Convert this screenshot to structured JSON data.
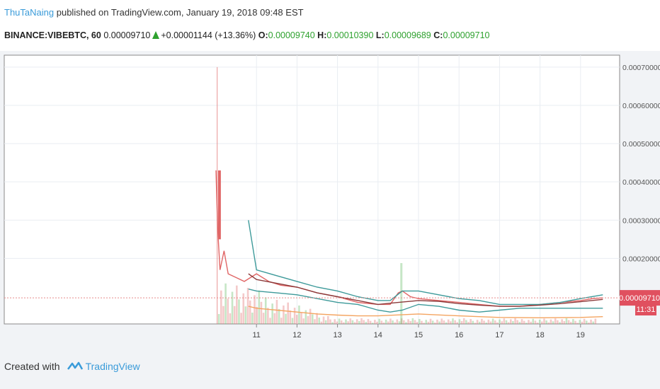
{
  "header": {
    "author": "ThuTaNaing",
    "published_text": "published on TradingView.com, January 19, 2018 09:48 EST",
    "symbol": "BINANCE:VIBEBTC, 60",
    "last_price": "0.00009710",
    "change": "+0.00001144 (+13.36%)",
    "open_label": "O:",
    "open": "0.00009740",
    "high_label": "H:",
    "high": "0.00010390",
    "low_label": "L:",
    "low": "0.00009689",
    "close_label": "C:",
    "close": "0.00009710"
  },
  "footer": {
    "created_with": "Created with",
    "brand": "TradingView"
  },
  "colors": {
    "up": "#5cb85c",
    "down": "#e06666",
    "bollinger": "#3d9a9a",
    "ma": "#8b3a3a",
    "volume_ma": "#f4a460",
    "price_line": "#e88a8a",
    "price_tag": "#e0505f"
  },
  "price_axis": {
    "ticks": [
      "0.00070000",
      "0.00060000",
      "0.00050000",
      "0.00040000",
      "0.00030000",
      "0.00020000"
    ]
  },
  "price_tag": {
    "value": "0.00009710",
    "countdown": "11:31"
  },
  "chart_data": {
    "type": "line",
    "ylim": [
      4e-05,
      0.00072
    ],
    "xlim": [
      0,
      9.6
    ],
    "x_ticks": [
      {
        "label": "11",
        "x": 1
      },
      {
        "label": "12",
        "x": 2
      },
      {
        "label": "13",
        "x": 3
      },
      {
        "label": "14",
        "x": 4
      },
      {
        "label": "15",
        "x": 5
      },
      {
        "label": "16",
        "x": 6
      },
      {
        "label": "17",
        "x": 7
      },
      {
        "label": "18",
        "x": 8
      },
      {
        "label": "19",
        "x": 9
      }
    ],
    "series": [
      {
        "role": "price",
        "x": [
          0,
          0.04,
          0.1,
          0.2,
          0.3,
          0.5,
          0.7,
          1.0,
          1.3,
          1.6,
          2.0,
          2.5,
          3.0,
          3.5,
          4.0,
          4.3,
          4.5,
          4.6,
          4.8,
          5.0,
          5.5,
          6.0,
          6.5,
          7.0,
          7.5,
          8.0,
          8.5,
          9.0,
          9.3,
          9.55
        ],
        "y": [
          0.00043,
          0.00028,
          0.00017,
          0.00022,
          0.00016,
          0.00015,
          0.00014,
          0.00016,
          0.00014,
          0.00013,
          0.000125,
          0.00011,
          0.0001,
          8.5e-05,
          8e-05,
          8e-05,
          0.00011,
          0.000115,
          0.0001,
          9.5e-05,
          9e-05,
          8.5e-05,
          8e-05,
          7.5e-05,
          7.5e-05,
          8e-05,
          8.5e-05,
          9e-05,
          9.5e-05,
          9.7e-05
        ]
      },
      {
        "role": "bollinger_upper",
        "x": [
          0.8,
          1.0,
          1.5,
          2.0,
          2.5,
          3.0,
          3.5,
          4.0,
          4.3,
          4.6,
          5.0,
          5.5,
          6.0,
          6.5,
          7.0,
          7.5,
          8.0,
          8.5,
          9.0,
          9.55
        ],
        "y": [
          0.0003,
          0.00017,
          0.000155,
          0.00014,
          0.000125,
          0.000115,
          0.0001,
          9e-05,
          9e-05,
          0.000115,
          0.000115,
          0.000105,
          9.5e-05,
          9e-05,
          8e-05,
          8e-05,
          8e-05,
          8.5e-05,
          9.5e-05,
          0.000105
        ]
      },
      {
        "role": "bollinger_lower",
        "x": [
          0.8,
          1.0,
          1.5,
          2.0,
          2.5,
          3.0,
          3.5,
          4.0,
          4.3,
          4.6,
          5.0,
          5.5,
          6.0,
          6.5,
          7.0,
          7.5,
          8.0,
          8.5,
          9.0,
          9.55
        ],
        "y": [
          0.00012,
          0.000115,
          0.00011,
          0.000105,
          9.5e-05,
          8.5e-05,
          8e-05,
          6.5e-05,
          6e-05,
          6.5e-05,
          8e-05,
          7.5e-05,
          6.5e-05,
          6e-05,
          6.5e-05,
          7e-05,
          7e-05,
          7e-05,
          7e-05,
          7e-05
        ]
      },
      {
        "role": "moving_average",
        "x": [
          0.8,
          1.0,
          1.5,
          2.0,
          2.5,
          3.0,
          3.5,
          4.0,
          4.5,
          5.0,
          5.5,
          6.0,
          6.5,
          7.0,
          7.5,
          8.0,
          8.5,
          9.0,
          9.55
        ],
        "y": [
          0.00016,
          0.000145,
          0.000135,
          0.000125,
          0.00011,
          0.0001,
          9e-05,
          8e-05,
          8.5e-05,
          9e-05,
          8.8e-05,
          8.2e-05,
          7.8e-05,
          7.5e-05,
          7.5e-05,
          7.8e-05,
          8.2e-05,
          8.7e-05,
          9.3e-05
        ]
      },
      {
        "role": "volume_ma",
        "x": [
          0.8,
          1.0,
          1.5,
          2.0,
          2.5,
          3.0,
          3.5,
          4.0,
          5.0,
          6.0,
          7.0,
          8.0,
          9.0,
          9.55
        ],
        "y": [
          7.5e-05,
          7e-05,
          6.5e-05,
          6e-05,
          5.5e-05,
          5.2e-05,
          5e-05,
          5e-05,
          5.5e-05,
          5e-05,
          4.6e-05,
          4.5e-05,
          4.6e-05,
          4.8e-05
        ]
      }
    ],
    "last_price": 9.71e-05
  }
}
